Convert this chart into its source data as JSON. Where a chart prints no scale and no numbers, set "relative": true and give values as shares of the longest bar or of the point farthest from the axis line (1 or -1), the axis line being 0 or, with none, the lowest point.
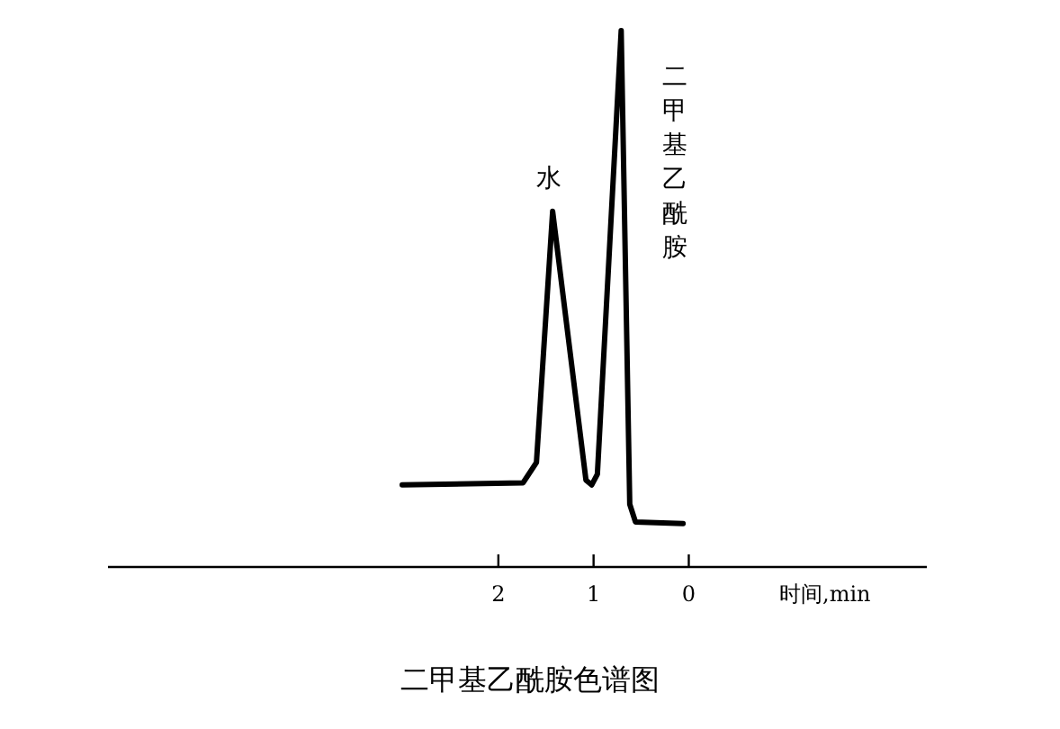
{
  "chart_data": {
    "type": "line",
    "relative": true,
    "title": "二甲基乙酰胺色谱图",
    "xlabel": "时间,min",
    "xlim": [
      6.1,
      -2.5
    ],
    "xticks": [
      2,
      1,
      0
    ],
    "color": "#000000",
    "x": [
      3.01,
      1.74,
      1.6,
      1.43,
      1.08,
      1.02,
      0.96,
      0.71,
      0.62,
      0.56,
      0.06
    ],
    "values": [
      0.153,
      0.157,
      0.195,
      0.663,
      0.162,
      0.153,
      0.173,
      1,
      0.117,
      0.084,
      0.081
    ],
    "annotations": [
      {
        "text": "水",
        "x": 1.43,
        "y": 0.663
      },
      {
        "text": "二甲基乙酰胺",
        "x": 0.71,
        "y": 1
      }
    ]
  }
}
